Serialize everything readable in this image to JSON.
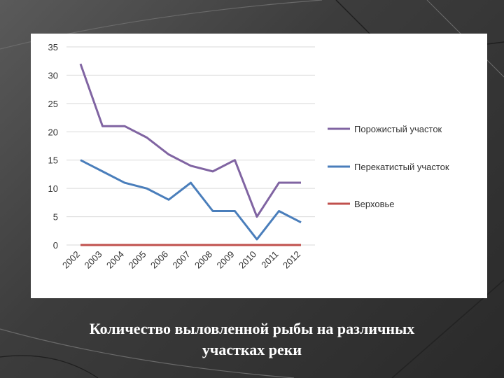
{
  "caption": {
    "line1": "Количество выловленной рыбы на различных",
    "line2": "участках реки"
  },
  "chart_data": {
    "type": "line",
    "x": [
      "2002",
      "2003",
      "2004",
      "2005",
      "2006",
      "2007",
      "2008",
      "2009",
      "2010",
      "2011",
      "2012"
    ],
    "ylim": [
      0,
      35
    ],
    "yticks": [
      0,
      5,
      10,
      15,
      20,
      25,
      30,
      35
    ],
    "grid": true,
    "legend": "right",
    "series": [
      {
        "name": "Порожистый участок",
        "color": "#8064a2",
        "values": [
          32,
          21,
          21,
          19,
          16,
          14,
          13,
          15,
          5,
          11,
          11
        ]
      },
      {
        "name": "Перекатистый участок",
        "color": "#4a7ebb",
        "values": [
          15,
          13,
          11,
          10,
          8,
          11,
          6,
          6,
          1,
          6,
          4
        ]
      },
      {
        "name": "Верховье",
        "color": "#c0504d",
        "values": [
          0,
          0,
          0,
          0,
          0,
          0,
          0,
          0,
          0,
          0,
          0
        ]
      }
    ]
  }
}
